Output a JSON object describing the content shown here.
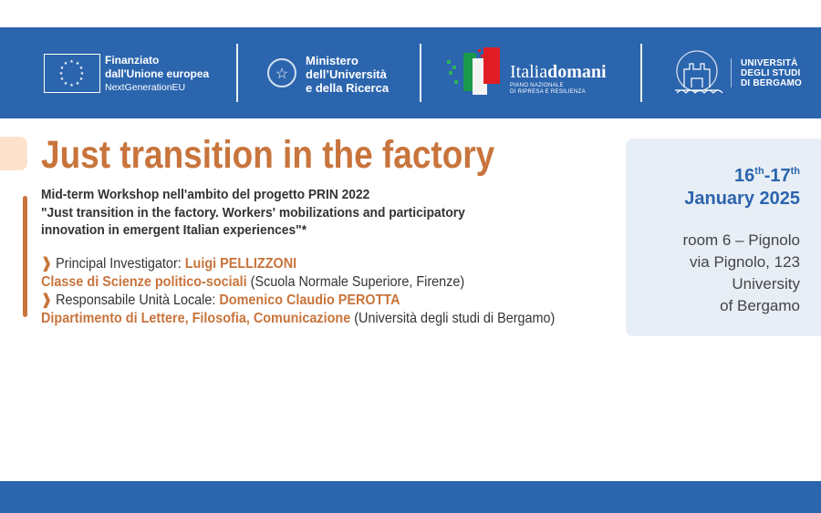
{
  "header": {
    "eu": {
      "line1": "Finanziato",
      "line2": "dall'Unione europea",
      "line3": "NextGenerationEU"
    },
    "ministry": {
      "line1": "Ministero",
      "line2": "dell’Università",
      "line3": "e della Ricerca"
    },
    "italiadomani": {
      "name_light": "Italia",
      "name_bold": "domani",
      "sub1": "PIANO NAZIONALE",
      "sub2": "DI RIPRESA E RESILIENZA"
    },
    "university": {
      "line1": "UNIVERSITÀ",
      "line2": "DEGLI STUDI",
      "line3": "DI BERGAMO"
    }
  },
  "main": {
    "title": "Just transition in the factory",
    "intro": [
      "Mid-term Workshop nell'ambito del progetto PRIN 2022",
      "\"Just transition in the factory. Workers' mobilizations and participatory",
      "innovation in emergent Italian experiences\"*"
    ],
    "pi_label": "Principal Investigator: ",
    "pi_name": "Luigi PELLIZZONI",
    "pi_dept": "Classe di Scienze politico-sociali",
    "pi_inst": " (Scuola Normale Superiore, Firenze)",
    "rul_label": "Responsabile Unità Locale: ",
    "rul_name": "Domenico Claudio PEROTTA",
    "rul_dept": "Dipartimento di Lettere, Filosofia, Comunicazione",
    "rul_inst": " (Università degli studi di Bergamo)"
  },
  "event": {
    "day1": "16",
    "sup1": "th",
    "dash": "-",
    "day2": "17",
    "sup2": "th",
    "month_year": "January 2025",
    "address": [
      "room 6 – Pignolo",
      "via Pignolo, 123",
      "University",
      "of Bergamo"
    ]
  },
  "colors": {
    "brand_blue": "#2b65ae",
    "accent_orange": "#c8743c",
    "box_bg": "#e8eef6"
  }
}
